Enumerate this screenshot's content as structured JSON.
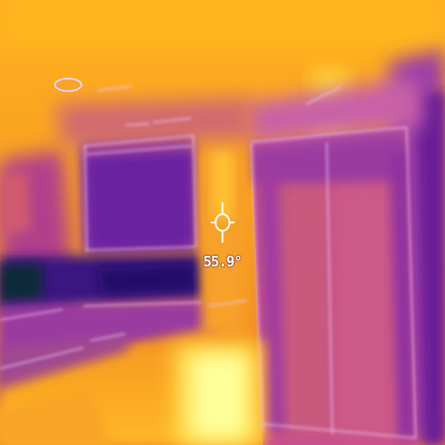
{
  "palette": {
    "hot": "#ffffa0",
    "warm_yellow": "#ffd040",
    "warm_orange": "#f58a1c",
    "mid_magenta": "#c04a9a",
    "cool_purple": "#7a2aa8",
    "cold_indigo": "#2a0f6a",
    "coldest": "#0a1a3a",
    "edge_highlight": "#f0c0ff"
  },
  "measurement": {
    "spot_temperature": "55.9°"
  },
  "icons": {
    "reticle": "crosshair-icon"
  }
}
